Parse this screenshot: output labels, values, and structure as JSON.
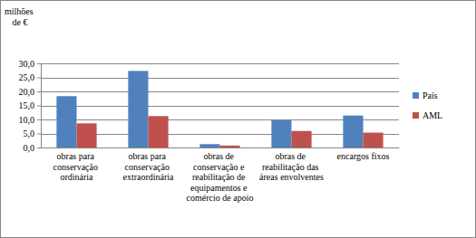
{
  "chart_data": {
    "type": "bar",
    "y_label": "milhões de €",
    "categories": [
      "obras para conservação ordinária",
      "obras para conservação extraordinária",
      "obras de conservação e reabilitação de equipamentos e comércio de apoio",
      "obras de reabilitação das áreas envolventes",
      "encargos fixos"
    ],
    "series": [
      {
        "name": "País",
        "color": "#4f81bd",
        "values": [
          18.3,
          27.3,
          1.2,
          9.7,
          11.4
        ]
      },
      {
        "name": "AML",
        "color": "#c0504d",
        "values": [
          8.6,
          11.2,
          0.7,
          5.9,
          5.3
        ]
      }
    ],
    "ylim": [
      0,
      30
    ],
    "yticks": [
      {
        "value": 0,
        "label": "0,0"
      },
      {
        "value": 5,
        "label": "5,0"
      },
      {
        "value": 10,
        "label": "10,0"
      },
      {
        "value": 15,
        "label": "15,0"
      },
      {
        "value": 20,
        "label": "20,0"
      },
      {
        "value": 25,
        "label": "25,0"
      },
      {
        "value": 30,
        "label": "30,0"
      }
    ],
    "grid": true,
    "legend": "right"
  }
}
